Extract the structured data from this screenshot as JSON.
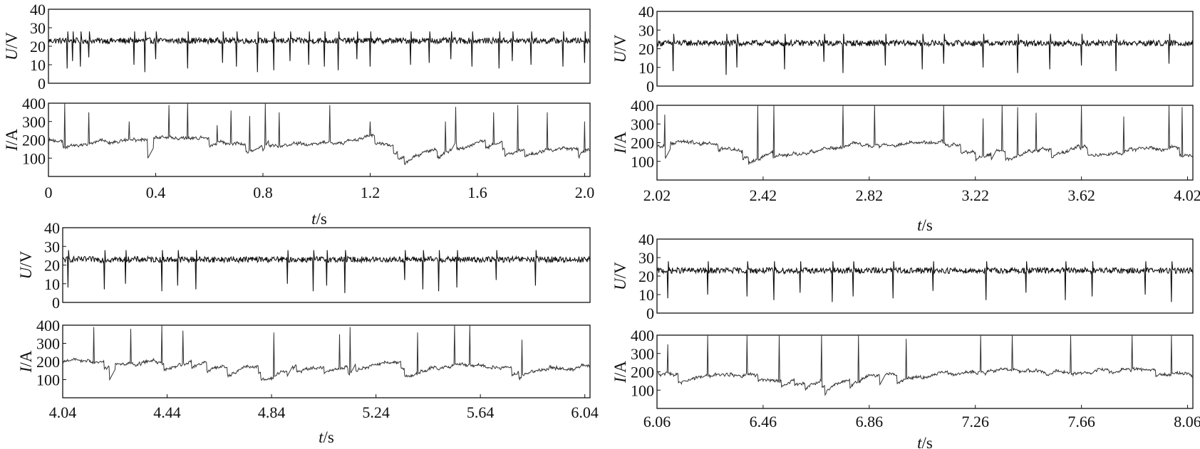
{
  "chart_data": [
    {
      "type": "line",
      "panel": "top-left",
      "x_ticks": [
        "0",
        "0.4",
        "0.8",
        "1.2",
        "1.6",
        "2.0"
      ],
      "xlim": [
        0,
        2.02
      ],
      "xlabel_var": "t",
      "xlabel_unit": "/s",
      "voltage": {
        "ylabel_var": "U",
        "ylabel_unit": "/V",
        "ylim": [
          0,
          40
        ],
        "y_ticks": [
          "0",
          "10",
          "20",
          "30",
          "40"
        ],
        "baseline": 23,
        "dips": [
          [
            0.07,
            8
          ],
          [
            0.09,
            12
          ],
          [
            0.12,
            9
          ],
          [
            0.15,
            14
          ],
          [
            0.32,
            10
          ],
          [
            0.36,
            6
          ],
          [
            0.4,
            13
          ],
          [
            0.52,
            8
          ],
          [
            0.65,
            11
          ],
          [
            0.7,
            9
          ],
          [
            0.78,
            6
          ],
          [
            0.84,
            7
          ],
          [
            0.9,
            12
          ],
          [
            0.97,
            10
          ],
          [
            1.03,
            9
          ],
          [
            1.08,
            7
          ],
          [
            1.15,
            13
          ],
          [
            1.2,
            9
          ],
          [
            1.35,
            10
          ],
          [
            1.42,
            11
          ],
          [
            1.5,
            13
          ],
          [
            1.58,
            9
          ],
          [
            1.68,
            8
          ],
          [
            1.73,
            12
          ],
          [
            1.8,
            10
          ],
          [
            1.92,
            9
          ],
          [
            2.0,
            11
          ]
        ]
      },
      "current": {
        "ylabel_var": "I",
        "ylabel_unit": "/A",
        "ylim": [
          0,
          400
        ],
        "y_ticks": [
          "100",
          "200",
          "300",
          "400"
        ],
        "baseline": 195,
        "spikes": [
          [
            0.06,
            400
          ],
          [
            0.15,
            350
          ],
          [
            0.3,
            300
          ],
          [
            0.45,
            390
          ],
          [
            0.52,
            400
          ],
          [
            0.63,
            280
          ],
          [
            0.68,
            360
          ],
          [
            0.75,
            330
          ],
          [
            0.81,
            400
          ],
          [
            0.86,
            350
          ],
          [
            1.05,
            390
          ],
          [
            1.2,
            300
          ],
          [
            1.48,
            300
          ],
          [
            1.52,
            380
          ],
          [
            1.66,
            350
          ],
          [
            1.75,
            390
          ],
          [
            1.86,
            350
          ],
          [
            2.0,
            300
          ]
        ],
        "drops": [
          [
            0.37,
            100
          ],
          [
            0.8,
            140
          ],
          [
            1.5,
            140
          ]
        ]
      }
    },
    {
      "type": "line",
      "panel": "top-right",
      "x_ticks": [
        "2.02",
        "2.42",
        "2.82",
        "3.22",
        "3.62",
        "4.02"
      ],
      "xlim": [
        2.02,
        4.04
      ],
      "xlabel_var": "t",
      "xlabel_unit": "/s",
      "voltage": {
        "ylabel_var": "U",
        "ylabel_unit": "/V",
        "ylim": [
          0,
          40
        ],
        "y_ticks": [
          "0",
          "10",
          "20",
          "30",
          "40"
        ],
        "baseline": 23,
        "dips": [
          [
            2.08,
            8
          ],
          [
            2.28,
            6
          ],
          [
            2.32,
            10
          ],
          [
            2.5,
            9
          ],
          [
            2.65,
            13
          ],
          [
            2.72,
            7
          ],
          [
            2.88,
            11
          ],
          [
            3.02,
            9
          ],
          [
            3.1,
            12
          ],
          [
            3.25,
            10
          ],
          [
            3.38,
            7
          ],
          [
            3.5,
            9
          ],
          [
            3.62,
            11
          ],
          [
            3.75,
            8
          ],
          [
            3.95,
            12
          ]
        ]
      },
      "current": {
        "ylabel_var": "I",
        "ylabel_unit": "/A",
        "ylim": [
          0,
          400
        ],
        "y_ticks": [
          "100",
          "200",
          "300",
          "400"
        ],
        "baseline": 185,
        "spikes": [
          [
            2.05,
            350
          ],
          [
            2.4,
            400
          ],
          [
            2.46,
            400
          ],
          [
            2.72,
            400
          ],
          [
            2.84,
            400
          ],
          [
            3.1,
            400
          ],
          [
            3.25,
            330
          ],
          [
            3.32,
            400
          ],
          [
            3.38,
            390
          ],
          [
            3.45,
            360
          ],
          [
            3.62,
            400
          ],
          [
            3.78,
            340
          ],
          [
            3.95,
            400
          ],
          [
            4.0,
            390
          ]
        ],
        "drops": [
          [
            2.05,
            110
          ],
          [
            3.28,
            110
          ]
        ]
      }
    },
    {
      "type": "line",
      "panel": "bottom-left",
      "x_ticks": [
        "4.04",
        "4.44",
        "4.84",
        "5.24",
        "5.64",
        "6.04"
      ],
      "xlim": [
        4.04,
        6.06
      ],
      "xlabel_var": "t",
      "xlabel_unit": "/s",
      "voltage": {
        "ylabel_var": "U",
        "ylabel_unit": "/V",
        "ylim": [
          0,
          40
        ],
        "y_ticks": [
          "0",
          "10",
          "20",
          "30",
          "40"
        ],
        "baseline": 23,
        "dips": [
          [
            4.06,
            8
          ],
          [
            4.2,
            7
          ],
          [
            4.28,
            10
          ],
          [
            4.42,
            6
          ],
          [
            4.48,
            9
          ],
          [
            4.55,
            7
          ],
          [
            4.9,
            10
          ],
          [
            5.0,
            6
          ],
          [
            5.05,
            9
          ],
          [
            5.12,
            5
          ],
          [
            5.35,
            12
          ],
          [
            5.42,
            7
          ],
          [
            5.48,
            6
          ],
          [
            5.55,
            8
          ],
          [
            5.7,
            12
          ],
          [
            5.85,
            9
          ]
        ]
      },
      "current": {
        "ylabel_var": "I",
        "ylabel_unit": "/A",
        "ylim": [
          0,
          400
        ],
        "y_ticks": [
          "100",
          "200",
          "300",
          "400"
        ],
        "baseline": 200,
        "spikes": [
          [
            4.16,
            390
          ],
          [
            4.3,
            380
          ],
          [
            4.42,
            400
          ],
          [
            4.5,
            370
          ],
          [
            4.85,
            360
          ],
          [
            5.1,
            350
          ],
          [
            5.14,
            390
          ],
          [
            5.4,
            360
          ],
          [
            5.54,
            400
          ],
          [
            5.6,
            400
          ],
          [
            5.8,
            320
          ]
        ],
        "drops": [
          [
            4.22,
            100
          ],
          [
            4.9,
            120
          ],
          [
            5.14,
            130
          ]
        ]
      }
    },
    {
      "type": "line",
      "panel": "bottom-right",
      "x_ticks": [
        "6.06",
        "6.46",
        "6.86",
        "7.26",
        "7.66",
        "8.06"
      ],
      "xlim": [
        6.06,
        8.08
      ],
      "xlabel_var": "t",
      "xlabel_unit": "/s",
      "voltage": {
        "ylabel_var": "U",
        "ylabel_unit": "/V",
        "ylim": [
          0,
          40
        ],
        "y_ticks": [
          "0",
          "10",
          "20",
          "30",
          "40"
        ],
        "baseline": 23,
        "dips": [
          [
            6.1,
            8
          ],
          [
            6.25,
            10
          ],
          [
            6.4,
            9
          ],
          [
            6.5,
            7
          ],
          [
            6.6,
            11
          ],
          [
            6.72,
            6
          ],
          [
            6.8,
            9
          ],
          [
            6.95,
            8
          ],
          [
            7.1,
            12
          ],
          [
            7.3,
            7
          ],
          [
            7.45,
            11
          ],
          [
            7.6,
            7
          ],
          [
            7.7,
            9
          ],
          [
            7.9,
            10
          ],
          [
            8.0,
            6
          ]
        ]
      },
      "current": {
        "ylabel_var": "I",
        "ylabel_unit": "/A",
        "ylim": [
          0,
          400
        ],
        "y_ticks": [
          "100",
          "200",
          "300",
          "400"
        ],
        "baseline": 195,
        "spikes": [
          [
            6.1,
            350
          ],
          [
            6.25,
            400
          ],
          [
            6.4,
            400
          ],
          [
            6.52,
            400
          ],
          [
            6.68,
            400
          ],
          [
            6.82,
            400
          ],
          [
            7.0,
            380
          ],
          [
            7.28,
            400
          ],
          [
            7.4,
            400
          ],
          [
            7.62,
            400
          ],
          [
            7.85,
            400
          ],
          [
            8.0,
            400
          ]
        ],
        "drops": [
          [
            6.9,
            130
          ]
        ]
      }
    }
  ]
}
